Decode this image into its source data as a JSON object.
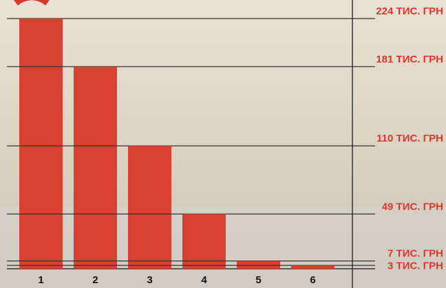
{
  "chart_data": {
    "type": "bar",
    "categories": [
      "1",
      "2",
      "3",
      "4",
      "5",
      "6"
    ],
    "values": [
      224,
      181,
      110,
      49,
      7,
      3
    ],
    "value_labels": [
      "224 ТИС. ГРН",
      "181 ТИС. ГРН",
      "110 ТИС. ГРН",
      "49 ТИС. ГРН",
      "7 ТИС. ГРН",
      "3 ТИС. ГРН"
    ],
    "color": "#d8402f",
    "ylim": [
      0,
      224
    ]
  }
}
